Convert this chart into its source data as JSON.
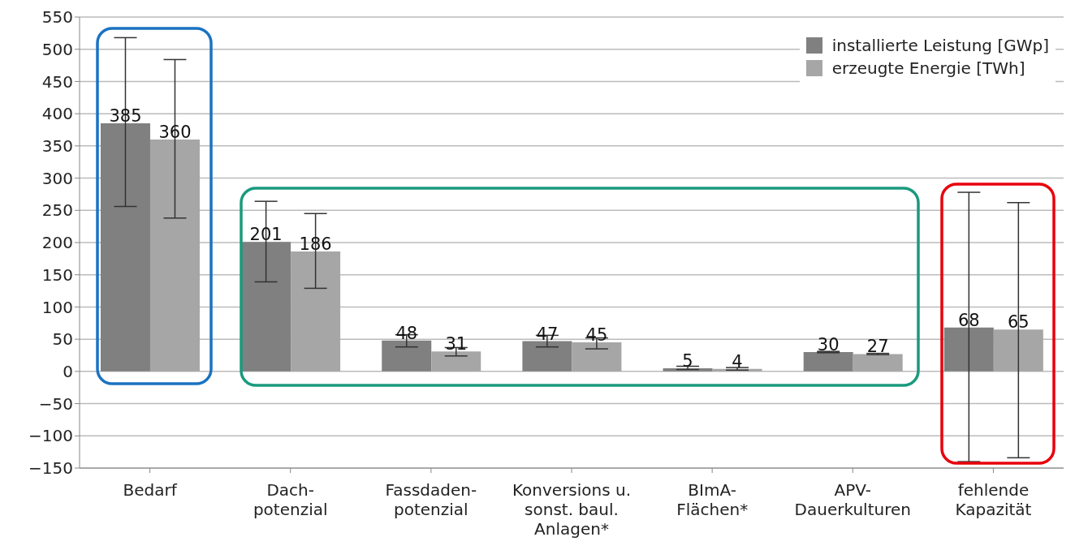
{
  "chart_data": {
    "type": "bar",
    "categories": [
      "Bedarf",
      "Dach-\npotenzial",
      "Fassdaden-\npotenzial",
      "Konversions u.\nsonst. baul.\nAnlagen*",
      "BImA-\nFlächen*",
      "APV-\nDauerkulturen",
      "fehlende\nKapazität"
    ],
    "series": [
      {
        "name": "installierte Leistung [GWp]",
        "color": "#808080",
        "values": [
          385,
          201,
          48,
          47,
          5,
          30,
          68
        ],
        "errors": [
          [
            256,
            518
          ],
          [
            139,
            264
          ],
          [
            38,
            57
          ],
          [
            38,
            56
          ],
          [
            3,
            8
          ],
          [
            29,
            31
          ],
          [
            -140,
            278
          ]
        ]
      },
      {
        "name": "erzeugte Energie [TWh]",
        "color": "#a6a6a6",
        "values": [
          360,
          186,
          31,
          45,
          4,
          27,
          65
        ],
        "errors": [
          [
            238,
            484
          ],
          [
            129,
            245
          ],
          [
            24,
            37
          ],
          [
            35,
            52
          ],
          [
            2,
            6
          ],
          [
            26,
            28
          ],
          [
            -134,
            262
          ]
        ]
      }
    ],
    "ylim": [
      -150,
      550
    ],
    "yticks": [
      -150,
      -100,
      -50,
      0,
      50,
      100,
      150,
      200,
      250,
      300,
      350,
      400,
      450,
      500,
      550
    ],
    "grid": "y",
    "legend": "top right",
    "data_labels": true
  }
}
